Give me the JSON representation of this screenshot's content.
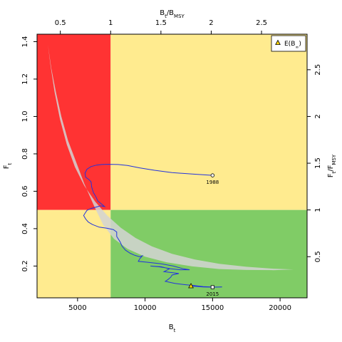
{
  "chart_data": {
    "type": "line",
    "title": "",
    "axes": {
      "bottom": {
        "label": "B",
        "label_sub": "t",
        "range": [
          2000,
          22000
        ],
        "ticks": [
          5000,
          10000,
          15000,
          20000
        ],
        "tick_labels": [
          "5000",
          "10000",
          "15000",
          "20000"
        ]
      },
      "left": {
        "label": "F",
        "label_sub": "t",
        "range": [
          0.03,
          1.44
        ],
        "ticks": [
          0.2,
          0.4,
          0.6,
          0.8,
          1.0,
          1.2,
          1.4
        ],
        "tick_labels": [
          "0.2",
          "0.4",
          "0.6",
          "0.8",
          "1.0",
          "1.2",
          "1.4"
        ]
      },
      "top": {
        "label": "B",
        "label_sub": "t",
        "label_mid": "/B",
        "label_sub2": "MSY",
        "ticks": [
          0.5,
          1,
          1.5,
          2,
          2.5
        ],
        "tick_labels": [
          "0.5",
          "1",
          "1.5",
          "2",
          "2.5"
        ]
      },
      "right": {
        "label": "F",
        "label_sub": "t",
        "label_mid": "/F",
        "label_sub2": "MSY",
        "ticks": [
          0.5,
          1,
          1.5,
          2,
          2.5
        ],
        "tick_labels": [
          "0.5",
          "1",
          "1.5",
          "2",
          "2.5"
        ]
      }
    },
    "reference_points": {
      "bmsy": 7450,
      "fmsy": 0.5
    },
    "quadrant_colors": {
      "overfished_overfishing": "#ff3333",
      "caution": "#ffeb8f",
      "sustainable": "#80cc66"
    },
    "series": [
      {
        "color": "#2233dd",
        "points": [
          [
            15000,
            0.685
          ],
          [
            13500,
            0.692
          ],
          [
            12000,
            0.7
          ],
          [
            10700,
            0.712
          ],
          [
            9600,
            0.725
          ],
          [
            8700,
            0.738
          ],
          [
            8000,
            0.743
          ],
          [
            7300,
            0.744
          ],
          [
            6800,
            0.743
          ],
          [
            6400,
            0.74
          ],
          [
            6000,
            0.732
          ],
          [
            5700,
            0.718
          ],
          [
            5550,
            0.697
          ],
          [
            5600,
            0.675
          ],
          [
            5850,
            0.662
          ],
          [
            6000,
            0.65
          ],
          [
            6050,
            0.622
          ],
          [
            6180,
            0.592
          ],
          [
            6350,
            0.572
          ],
          [
            6500,
            0.548
          ],
          [
            6800,
            0.53
          ],
          [
            7000,
            0.518
          ],
          [
            6700,
            0.522
          ],
          [
            6400,
            0.516
          ],
          [
            6000,
            0.508
          ],
          [
            5700,
            0.498
          ],
          [
            5550,
            0.482
          ],
          [
            5450,
            0.47
          ],
          [
            5600,
            0.452
          ],
          [
            5800,
            0.435
          ],
          [
            6100,
            0.422
          ],
          [
            6600,
            0.408
          ],
          [
            7200,
            0.402
          ],
          [
            7650,
            0.395
          ],
          [
            7900,
            0.382
          ],
          [
            7900,
            0.358
          ],
          [
            8150,
            0.33
          ],
          [
            8300,
            0.306
          ],
          [
            8550,
            0.285
          ],
          [
            8900,
            0.268
          ],
          [
            9250,
            0.257
          ],
          [
            9600,
            0.25
          ],
          [
            9800,
            0.255
          ],
          [
            9600,
            0.238
          ],
          [
            9500,
            0.225
          ],
          [
            10200,
            0.22
          ],
          [
            11200,
            0.212
          ],
          [
            12100,
            0.2
          ],
          [
            12850,
            0.185
          ],
          [
            13300,
            0.18
          ],
          [
            12600,
            0.18
          ],
          [
            11900,
            0.185
          ],
          [
            11400,
            0.192
          ],
          [
            11000,
            0.196
          ],
          [
            10400,
            0.2
          ],
          [
            11200,
            0.196
          ],
          [
            11800,
            0.185
          ],
          [
            11400,
            0.17
          ],
          [
            12000,
            0.165
          ],
          [
            12500,
            0.16
          ],
          [
            12000,
            0.152
          ],
          [
            11900,
            0.14
          ],
          [
            11700,
            0.128
          ],
          [
            11500,
            0.118
          ],
          [
            12200,
            0.107
          ],
          [
            13000,
            0.1
          ],
          [
            13700,
            0.095
          ],
          [
            14300,
            0.09
          ],
          [
            15200,
            0.087
          ],
          [
            15700,
            0.088
          ],
          [
            15000,
            0.087
          ],
          [
            14300,
            0.088
          ],
          [
            13800,
            0.091
          ],
          [
            13400,
            0.093
          ]
        ]
      }
    ],
    "labels": [
      {
        "text": "1988",
        "x": 15000,
        "y": 0.685
      },
      {
        "text": "2015",
        "x": 15000,
        "y": 0.087
      }
    ],
    "expected_point": {
      "x": 13400,
      "y": 0.093,
      "color": "#ffd700"
    },
    "legend": {
      "position": "top-right",
      "entries": [
        {
          "prefix": "E(B",
          "sub": "∞",
          "suffix": ")"
        }
      ]
    },
    "uncertainty_region": {
      "color": "#d3d3d3",
      "upper": [
        [
          2800,
          1.385
        ],
        [
          3000,
          1.27
        ],
        [
          3300,
          1.13
        ],
        [
          3700,
          0.985
        ],
        [
          4200,
          0.85
        ],
        [
          4800,
          0.73
        ],
        [
          5500,
          0.63
        ],
        [
          6300,
          0.545
        ],
        [
          7200,
          0.47
        ],
        [
          8200,
          0.405
        ],
        [
          9300,
          0.35
        ],
        [
          10500,
          0.305
        ],
        [
          12000,
          0.265
        ],
        [
          13700,
          0.235
        ],
        [
          15500,
          0.212
        ],
        [
          17500,
          0.196
        ],
        [
          19500,
          0.186
        ],
        [
          21000,
          0.182
        ]
      ],
      "lower": [
        [
          21000,
          0.182
        ],
        [
          19500,
          0.178
        ],
        [
          17500,
          0.179
        ],
        [
          15500,
          0.184
        ],
        [
          13500,
          0.198
        ],
        [
          11600,
          0.22
        ],
        [
          10000,
          0.25
        ],
        [
          8700,
          0.292
        ],
        [
          7700,
          0.345
        ],
        [
          6900,
          0.42
        ],
        [
          6200,
          0.525
        ],
        [
          5500,
          0.64
        ],
        [
          4900,
          0.755
        ],
        [
          4300,
          0.87
        ],
        [
          3800,
          1.0
        ],
        [
          3400,
          1.13
        ],
        [
          3050,
          1.26
        ],
        [
          2800,
          1.385
        ]
      ]
    }
  }
}
